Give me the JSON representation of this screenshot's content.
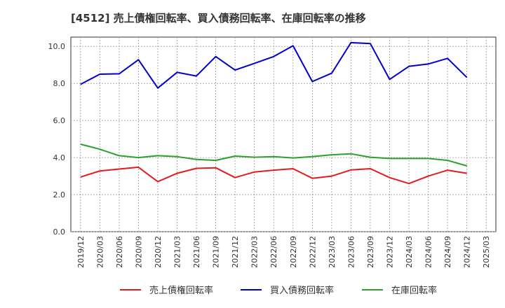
{
  "chart_data": {
    "type": "line",
    "title": "[4512]  売上債権回転率、買入債務回転率、在庫回転率の推移",
    "xlabel": "",
    "ylabel": "",
    "ylim": [
      0,
      10.5
    ],
    "yticks": [
      "0.0",
      "2.0",
      "4.0",
      "6.0",
      "8.0",
      "10.0"
    ],
    "ytick_values": [
      0,
      2,
      4,
      6,
      8,
      10
    ],
    "grid": true,
    "legend_position": "bottom",
    "categories": [
      "2019/12",
      "2020/03",
      "2020/06",
      "2020/09",
      "2020/12",
      "2021/03",
      "2021/06",
      "2021/09",
      "2021/12",
      "2022/03",
      "2022/06",
      "2022/09",
      "2022/12",
      "2023/03",
      "2023/06",
      "2023/09",
      "2023/12",
      "2024/03",
      "2024/06",
      "2024/09",
      "2024/12",
      "2025/03"
    ],
    "series": [
      {
        "name": "売上債権回転率",
        "color": "#e41a1c",
        "values": [
          2.95,
          3.28,
          3.38,
          3.48,
          2.7,
          3.15,
          3.42,
          3.45,
          2.92,
          3.22,
          3.32,
          3.4,
          2.88,
          3.0,
          3.33,
          3.4,
          2.92,
          2.6,
          3.0,
          3.32,
          3.15,
          null
        ]
      },
      {
        "name": "買入債務回転率",
        "color": "#0000cc",
        "values": [
          7.95,
          8.5,
          8.52,
          9.28,
          7.75,
          8.6,
          8.4,
          9.45,
          8.72,
          9.08,
          9.45,
          10.03,
          8.1,
          8.55,
          10.2,
          10.15,
          8.22,
          8.92,
          9.05,
          9.35,
          8.32,
          null
        ]
      },
      {
        "name": "在庫回転率",
        "color": "#2ca02c",
        "values": [
          4.72,
          4.45,
          4.1,
          4.0,
          4.1,
          4.05,
          3.9,
          3.85,
          4.08,
          4.02,
          4.05,
          3.98,
          4.05,
          4.15,
          4.2,
          4.02,
          3.95,
          3.95,
          3.95,
          3.85,
          3.55,
          null
        ]
      }
    ]
  }
}
